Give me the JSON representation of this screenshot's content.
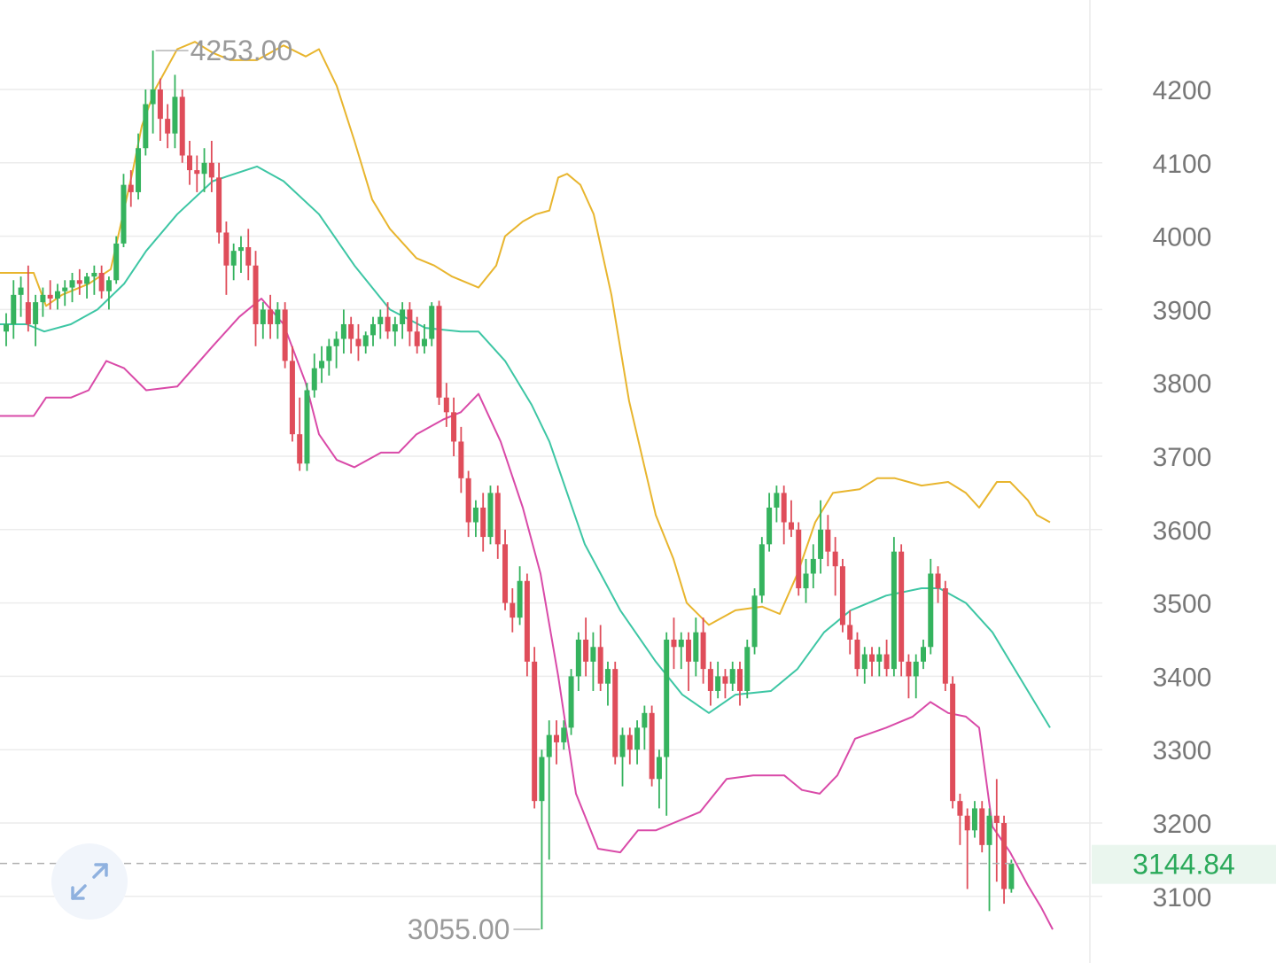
{
  "chart_data": {
    "type": "candlestick",
    "title": "",
    "xlabel": "",
    "ylabel": "",
    "ylim": [
      3040,
      4265
    ],
    "y_ticks": [
      "4200",
      "4100",
      "4000",
      "3900",
      "3800",
      "3700",
      "3600",
      "3500",
      "3400",
      "3300",
      "3200",
      "3100"
    ],
    "grid": true,
    "last_price": "3144.84",
    "period_high": "4253.00",
    "period_low": "3055.00",
    "colors": {
      "up": "#35b35e",
      "down": "#df4d5a",
      "upper_band": "#e8b52e",
      "middle_band": "#3dc6a4",
      "lower_band": "#d94aa8",
      "last_price": "#2aa95a"
    },
    "candles": [
      [
        3870,
        3895,
        3850,
        3880
      ],
      [
        3880,
        3940,
        3860,
        3920
      ],
      [
        3920,
        3945,
        3890,
        3930
      ],
      [
        3910,
        3960,
        3870,
        3880
      ],
      [
        3880,
        3920,
        3850,
        3910
      ],
      [
        3910,
        3930,
        3890,
        3920
      ],
      [
        3920,
        3940,
        3900,
        3915
      ],
      [
        3915,
        3935,
        3900,
        3925
      ],
      [
        3925,
        3940,
        3905,
        3930
      ],
      [
        3930,
        3950,
        3910,
        3940
      ],
      [
        3940,
        3955,
        3920,
        3935
      ],
      [
        3935,
        3950,
        3915,
        3945
      ],
      [
        3945,
        3960,
        3920,
        3950
      ],
      [
        3950,
        3960,
        3915,
        3925
      ],
      [
        3925,
        3945,
        3900,
        3940
      ],
      [
        3940,
        4000,
        3935,
        3990
      ],
      [
        3990,
        4085,
        3985,
        4070
      ],
      [
        4070,
        4090,
        4040,
        4060
      ],
      [
        4060,
        4140,
        4050,
        4120
      ],
      [
        4120,
        4200,
        4110,
        4180
      ],
      [
        4180,
        4253,
        4140,
        4200
      ],
      [
        4200,
        4215,
        4130,
        4160
      ],
      [
        4160,
        4180,
        4120,
        4140
      ],
      [
        4140,
        4220,
        4120,
        4190
      ],
      [
        4190,
        4200,
        4100,
        4110
      ],
      [
        4110,
        4130,
        4070,
        4090
      ],
      [
        4090,
        4110,
        4060,
        4085
      ],
      [
        4085,
        4120,
        4060,
        4100
      ],
      [
        4100,
        4130,
        4060,
        4080
      ],
      [
        4080,
        4100,
        3990,
        4005
      ],
      [
        4005,
        4020,
        3920,
        3960
      ],
      [
        3960,
        3990,
        3940,
        3980
      ],
      [
        3980,
        4000,
        3950,
        3985
      ],
      [
        3985,
        4010,
        3940,
        3960
      ],
      [
        3960,
        3980,
        3850,
        3880
      ],
      [
        3880,
        3910,
        3860,
        3900
      ],
      [
        3900,
        3920,
        3860,
        3880
      ],
      [
        3880,
        3910,
        3860,
        3900
      ],
      [
        3900,
        3910,
        3820,
        3830
      ],
      [
        3830,
        3850,
        3720,
        3730
      ],
      [
        3730,
        3780,
        3680,
        3690
      ],
      [
        3690,
        3800,
        3680,
        3790
      ],
      [
        3790,
        3840,
        3780,
        3820
      ],
      [
        3820,
        3850,
        3800,
        3830
      ],
      [
        3830,
        3860,
        3810,
        3850
      ],
      [
        3850,
        3870,
        3820,
        3860
      ],
      [
        3860,
        3900,
        3840,
        3880
      ],
      [
        3880,
        3890,
        3840,
        3860
      ],
      [
        3860,
        3880,
        3830,
        3850
      ],
      [
        3850,
        3870,
        3840,
        3865
      ],
      [
        3865,
        3890,
        3850,
        3880
      ],
      [
        3880,
        3900,
        3860,
        3890
      ],
      [
        3890,
        3910,
        3860,
        3870
      ],
      [
        3870,
        3890,
        3850,
        3880
      ],
      [
        3880,
        3910,
        3860,
        3900
      ],
      [
        3900,
        3910,
        3850,
        3870
      ],
      [
        3870,
        3890,
        3840,
        3850
      ],
      [
        3850,
        3880,
        3840,
        3860
      ],
      [
        3860,
        3910,
        3850,
        3905
      ],
      [
        3905,
        3912,
        3770,
        3780
      ],
      [
        3780,
        3800,
        3740,
        3760
      ],
      [
        3760,
        3780,
        3700,
        3720
      ],
      [
        3720,
        3740,
        3650,
        3670
      ],
      [
        3670,
        3680,
        3590,
        3610
      ],
      [
        3610,
        3640,
        3590,
        3630
      ],
      [
        3630,
        3650,
        3570,
        3590
      ],
      [
        3590,
        3660,
        3580,
        3650
      ],
      [
        3650,
        3660,
        3560,
        3580
      ],
      [
        3580,
        3600,
        3490,
        3500
      ],
      [
        3500,
        3520,
        3460,
        3480
      ],
      [
        3480,
        3550,
        3470,
        3530
      ],
      [
        3530,
        3540,
        3400,
        3420
      ],
      [
        3420,
        3440,
        3220,
        3230
      ],
      [
        3230,
        3300,
        3055,
        3290
      ],
      [
        3290,
        3340,
        3150,
        3320
      ],
      [
        3320,
        3340,
        3280,
        3310
      ],
      [
        3310,
        3340,
        3300,
        3330
      ],
      [
        3330,
        3410,
        3320,
        3400
      ],
      [
        3400,
        3460,
        3380,
        3450
      ],
      [
        3450,
        3480,
        3400,
        3420
      ],
      [
        3420,
        3460,
        3380,
        3440
      ],
      [
        3440,
        3470,
        3380,
        3390
      ],
      [
        3390,
        3420,
        3360,
        3410
      ],
      [
        3410,
        3420,
        3280,
        3290
      ],
      [
        3290,
        3330,
        3250,
        3320
      ],
      [
        3320,
        3330,
        3280,
        3300
      ],
      [
        3300,
        3340,
        3280,
        3330
      ],
      [
        3330,
        3360,
        3300,
        3350
      ],
      [
        3350,
        3360,
        3250,
        3260
      ],
      [
        3260,
        3300,
        3220,
        3290
      ],
      [
        3290,
        3460,
        3210,
        3450
      ],
      [
        3450,
        3480,
        3410,
        3440
      ],
      [
        3440,
        3460,
        3410,
        3450
      ],
      [
        3450,
        3460,
        3380,
        3420
      ],
      [
        3420,
        3480,
        3400,
        3460
      ],
      [
        3460,
        3480,
        3390,
        3410
      ],
      [
        3410,
        3420,
        3360,
        3380
      ],
      [
        3380,
        3420,
        3370,
        3400
      ],
      [
        3400,
        3410,
        3370,
        3390
      ],
      [
        3390,
        3420,
        3380,
        3410
      ],
      [
        3410,
        3420,
        3360,
        3380
      ],
      [
        3380,
        3450,
        3370,
        3440
      ],
      [
        3440,
        3520,
        3430,
        3510
      ],
      [
        3510,
        3590,
        3500,
        3580
      ],
      [
        3580,
        3650,
        3570,
        3630
      ],
      [
        3630,
        3660,
        3610,
        3650
      ],
      [
        3650,
        3660,
        3580,
        3610
      ],
      [
        3610,
        3640,
        3590,
        3600
      ],
      [
        3600,
        3610,
        3510,
        3520
      ],
      [
        3520,
        3560,
        3500,
        3540
      ],
      [
        3540,
        3580,
        3520,
        3560
      ],
      [
        3560,
        3640,
        3540,
        3600
      ],
      [
        3600,
        3620,
        3550,
        3570
      ],
      [
        3570,
        3590,
        3510,
        3550
      ],
      [
        3550,
        3560,
        3460,
        3470
      ],
      [
        3470,
        3490,
        3430,
        3450
      ],
      [
        3450,
        3460,
        3400,
        3410
      ],
      [
        3410,
        3440,
        3390,
        3430
      ],
      [
        3430,
        3440,
        3400,
        3420
      ],
      [
        3420,
        3440,
        3400,
        3430
      ],
      [
        3430,
        3450,
        3400,
        3410
      ],
      [
        3410,
        3590,
        3400,
        3570
      ],
      [
        3570,
        3580,
        3400,
        3420
      ],
      [
        3420,
        3430,
        3370,
        3400
      ],
      [
        3400,
        3430,
        3370,
        3420
      ],
      [
        3420,
        3450,
        3410,
        3440
      ],
      [
        3440,
        3560,
        3430,
        3540
      ],
      [
        3540,
        3550,
        3500,
        3520
      ],
      [
        3520,
        3530,
        3380,
        3390
      ],
      [
        3390,
        3400,
        3220,
        3230
      ],
      [
        3230,
        3240,
        3170,
        3210
      ],
      [
        3210,
        3220,
        3110,
        3190
      ],
      [
        3190,
        3230,
        3180,
        3220
      ],
      [
        3220,
        3230,
        3160,
        3170
      ],
      [
        3170,
        3220,
        3080,
        3210
      ],
      [
        3210,
        3260,
        3120,
        3200
      ],
      [
        3200,
        3210,
        3090,
        3110
      ],
      [
        3110,
        3150,
        3105,
        3144.84
      ]
    ],
    "bollinger": {
      "upper": [
        [
          0,
          3950
        ],
        [
          8,
          3950
        ],
        [
          17,
          3950
        ],
        [
          38,
          3950
        ],
        [
          52,
          3905
        ],
        [
          70,
          3920
        ],
        [
          100,
          3935
        ],
        [
          125,
          3955
        ],
        [
          150,
          4090
        ],
        [
          160,
          4150
        ],
        [
          175,
          4200
        ],
        [
          200,
          4255
        ],
        [
          220,
          4265
        ],
        [
          240,
          4250
        ],
        [
          260,
          4240
        ],
        [
          290,
          4240
        ],
        [
          320,
          4260
        ],
        [
          345,
          4245
        ],
        [
          360,
          4255
        ],
        [
          380,
          4205
        ],
        [
          400,
          4130
        ],
        [
          420,
          4050
        ],
        [
          440,
          4010
        ],
        [
          470,
          3970
        ],
        [
          490,
          3960
        ],
        [
          510,
          3945
        ],
        [
          540,
          3930
        ],
        [
          560,
          3960
        ],
        [
          570,
          4000
        ],
        [
          590,
          4020
        ],
        [
          605,
          4030
        ],
        [
          620,
          4035
        ],
        [
          630,
          4080
        ],
        [
          640,
          4085
        ],
        [
          655,
          4070
        ],
        [
          670,
          4030
        ],
        [
          690,
          3920
        ],
        [
          710,
          3775
        ],
        [
          740,
          3620
        ],
        [
          760,
          3560
        ],
        [
          775,
          3500
        ],
        [
          800,
          3470
        ],
        [
          830,
          3490
        ],
        [
          860,
          3495
        ],
        [
          880,
          3485
        ],
        [
          900,
          3540
        ],
        [
          920,
          3610
        ],
        [
          940,
          3650
        ],
        [
          970,
          3655
        ],
        [
          990,
          3670
        ],
        [
          1010,
          3670
        ],
        [
          1040,
          3660
        ],
        [
          1070,
          3665
        ],
        [
          1090,
          3650
        ],
        [
          1105,
          3630
        ],
        [
          1125,
          3665
        ],
        [
          1140,
          3665
        ],
        [
          1160,
          3640
        ],
        [
          1170,
          3620
        ],
        [
          1185,
          3610
        ]
      ],
      "middle": [
        [
          0,
          3880
        ],
        [
          30,
          3880
        ],
        [
          50,
          3870
        ],
        [
          80,
          3880
        ],
        [
          110,
          3900
        ],
        [
          140,
          3935
        ],
        [
          165,
          3980
        ],
        [
          200,
          4030
        ],
        [
          240,
          4075
        ],
        [
          290,
          4095
        ],
        [
          320,
          4075
        ],
        [
          360,
          4030
        ],
        [
          400,
          3960
        ],
        [
          440,
          3900
        ],
        [
          480,
          3875
        ],
        [
          520,
          3870
        ],
        [
          540,
          3870
        ],
        [
          570,
          3830
        ],
        [
          600,
          3770
        ],
        [
          620,
          3720
        ],
        [
          640,
          3650
        ],
        [
          660,
          3580
        ],
        [
          700,
          3490
        ],
        [
          740,
          3420
        ],
        [
          770,
          3375
        ],
        [
          800,
          3350
        ],
        [
          830,
          3375
        ],
        [
          870,
          3380
        ],
        [
          900,
          3410
        ],
        [
          930,
          3460
        ],
        [
          960,
          3490
        ],
        [
          1000,
          3510
        ],
        [
          1040,
          3520
        ],
        [
          1060,
          3520
        ],
        [
          1090,
          3500
        ],
        [
          1120,
          3460
        ],
        [
          1150,
          3400
        ],
        [
          1185,
          3330
        ]
      ],
      "lower": [
        [
          0,
          3755
        ],
        [
          20,
          3755
        ],
        [
          38,
          3755
        ],
        [
          52,
          3780
        ],
        [
          80,
          3780
        ],
        [
          100,
          3790
        ],
        [
          120,
          3830
        ],
        [
          140,
          3820
        ],
        [
          165,
          3790
        ],
        [
          200,
          3795
        ],
        [
          240,
          3850
        ],
        [
          270,
          3890
        ],
        [
          295,
          3915
        ],
        [
          320,
          3880
        ],
        [
          345,
          3800
        ],
        [
          360,
          3730
        ],
        [
          380,
          3695
        ],
        [
          400,
          3685
        ],
        [
          430,
          3705
        ],
        [
          450,
          3705
        ],
        [
          470,
          3730
        ],
        [
          500,
          3750
        ],
        [
          520,
          3760
        ],
        [
          540,
          3785
        ],
        [
          565,
          3720
        ],
        [
          590,
          3630
        ],
        [
          610,
          3540
        ],
        [
          630,
          3400
        ],
        [
          650,
          3240
        ],
        [
          675,
          3165
        ],
        [
          700,
          3160
        ],
        [
          720,
          3190
        ],
        [
          740,
          3190
        ],
        [
          760,
          3200
        ],
        [
          790,
          3215
        ],
        [
          820,
          3260
        ],
        [
          850,
          3265
        ],
        [
          885,
          3265
        ],
        [
          905,
          3245
        ],
        [
          925,
          3240
        ],
        [
          945,
          3265
        ],
        [
          965,
          3315
        ],
        [
          1000,
          3330
        ],
        [
          1030,
          3345
        ],
        [
          1050,
          3365
        ],
        [
          1070,
          3350
        ],
        [
          1090,
          3345
        ],
        [
          1105,
          3330
        ],
        [
          1120,
          3195
        ],
        [
          1140,
          3160
        ],
        [
          1160,
          3115
        ],
        [
          1175,
          3085
        ],
        [
          1188,
          3055
        ]
      ]
    }
  },
  "controls": {
    "expand_icon": "expand-arrows-icon"
  }
}
